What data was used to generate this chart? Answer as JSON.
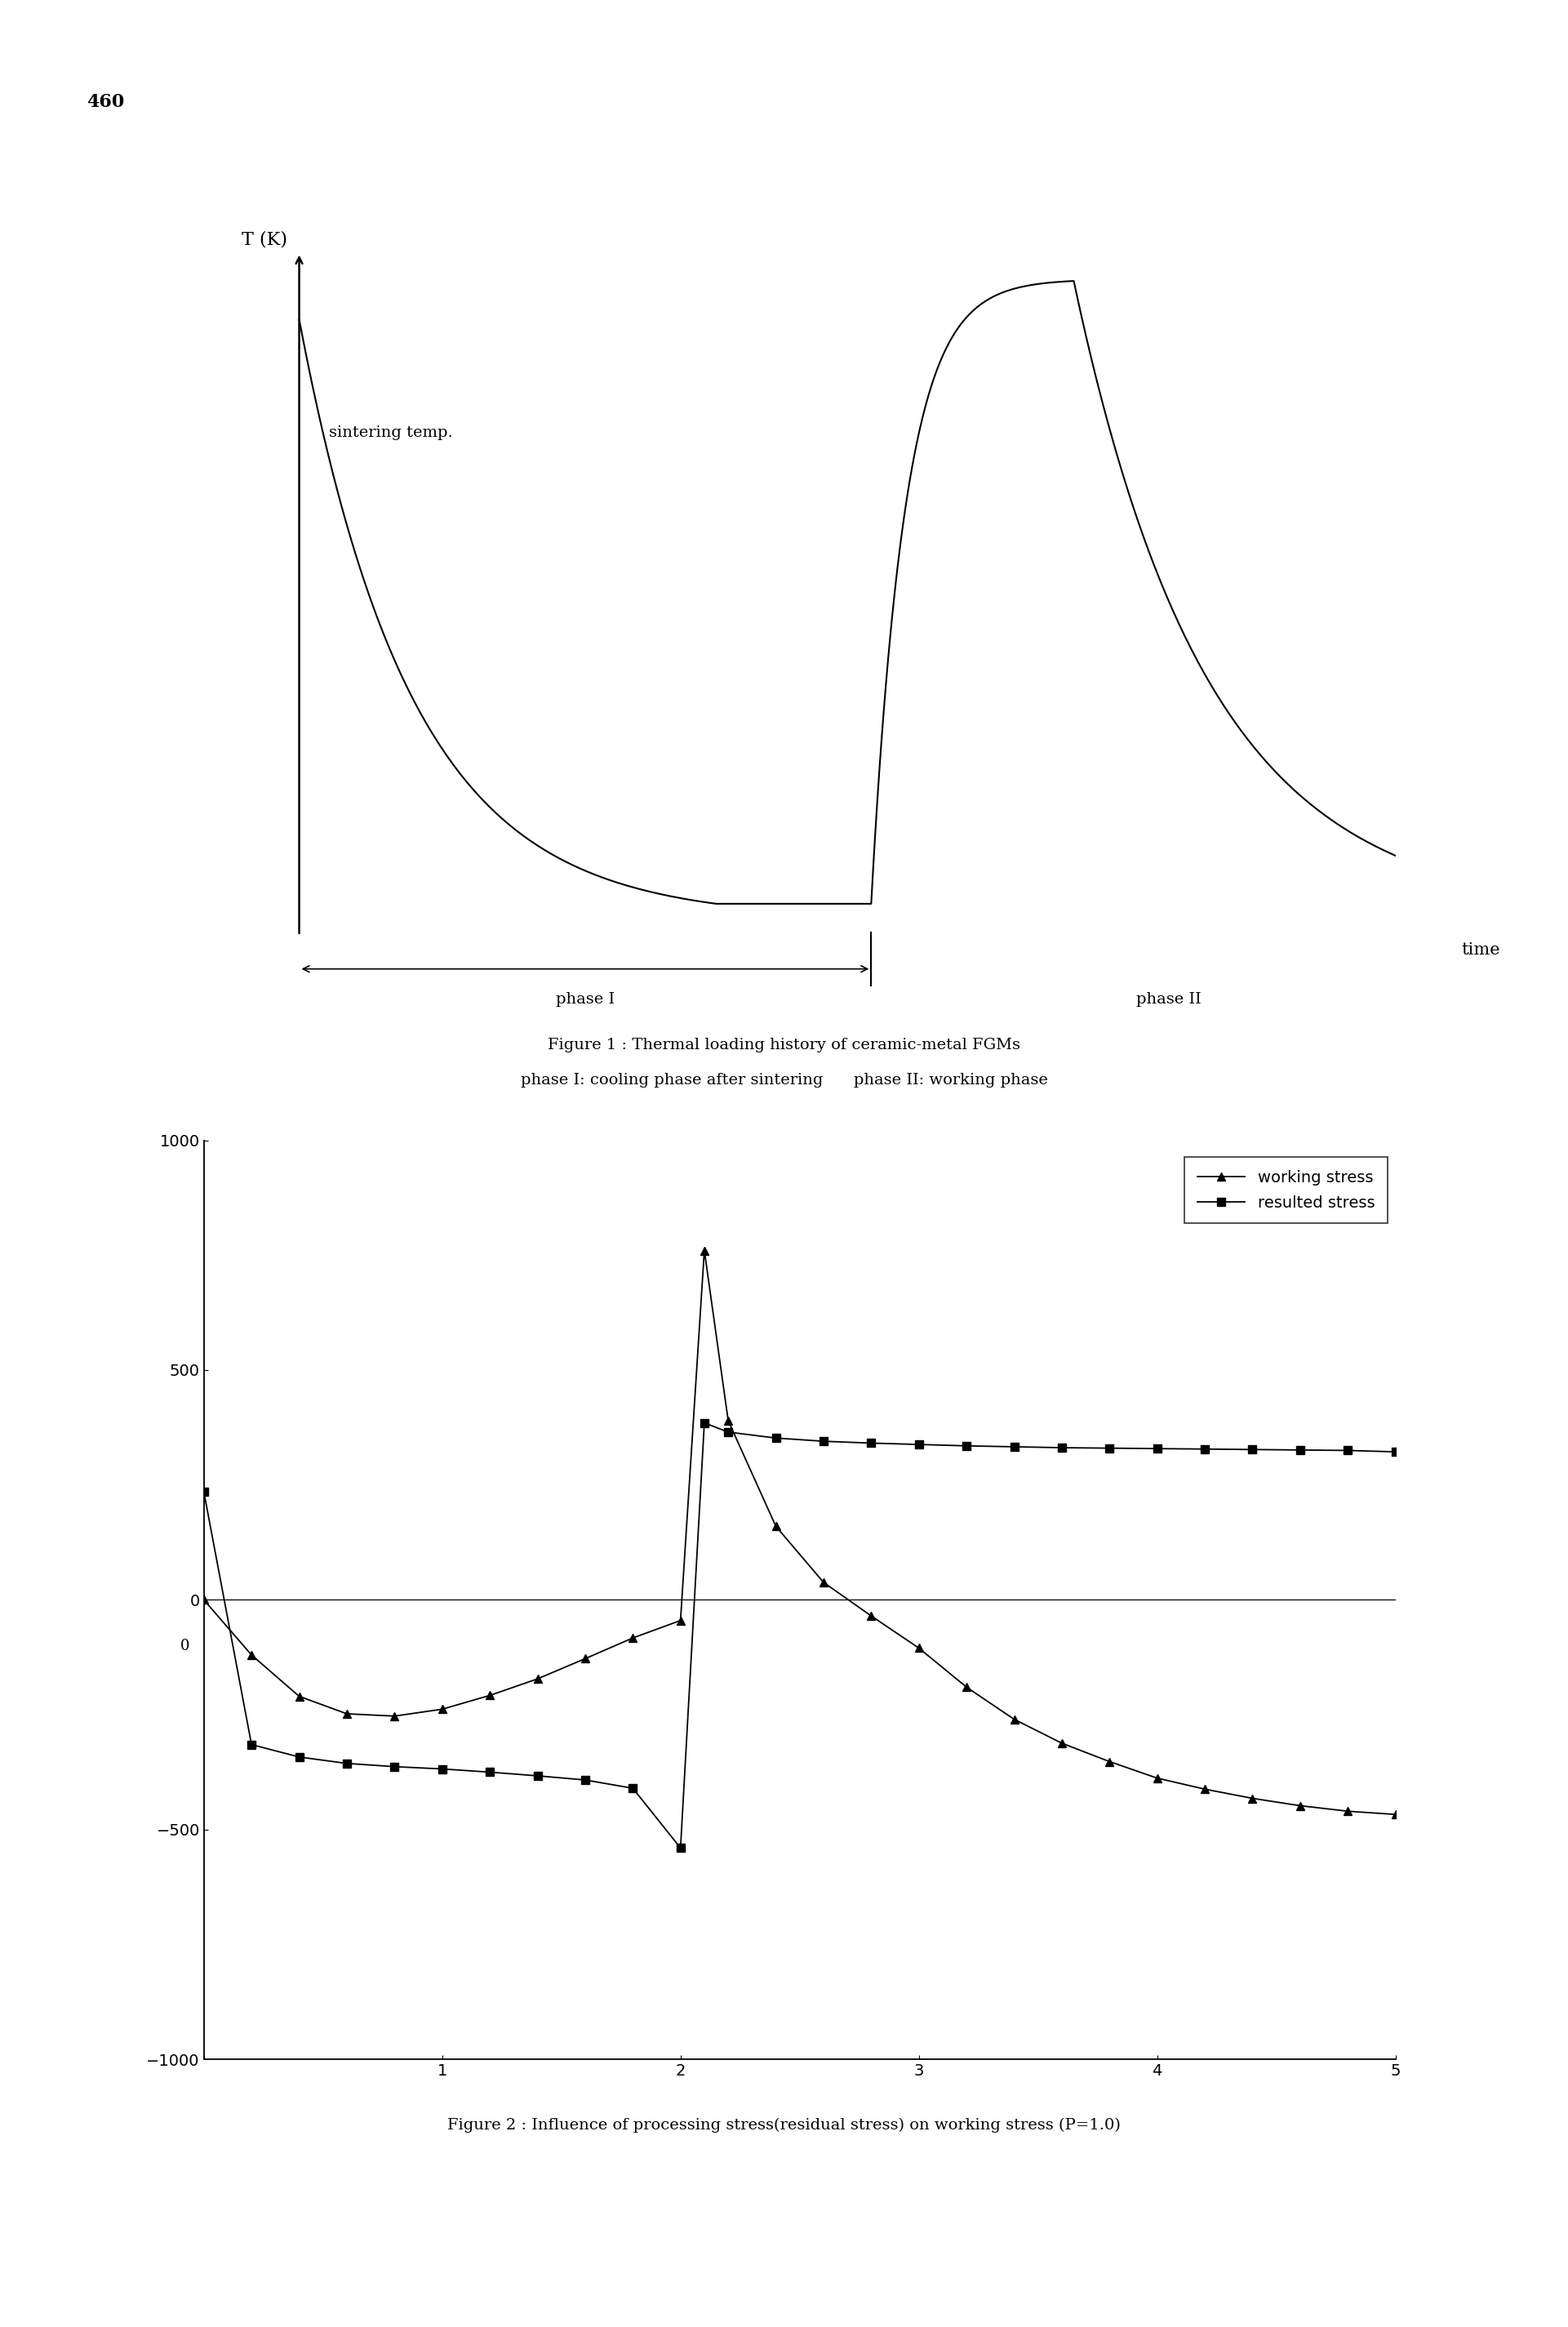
{
  "page_number": "460",
  "fig1_title_line1": "Figure 1 : Thermal loading history of ceramic-metal FGMs",
  "fig1_title_line2": "phase I: cooling phase after sintering      phase II: working phase",
  "fig1_ylabel": "T (K)",
  "fig1_xlabel_text": "time",
  "fig1_sintering_label": "sintering temp.",
  "fig1_phase1_label": "phase I",
  "fig1_phase2_label": "phase II",
  "fig2_caption": "Figure 2 : Influence of processing stress(residual stress) on working stress (P=1.0)",
  "fig2_ylim": [
    -1000,
    1000
  ],
  "fig2_xlim": [
    0,
    5
  ],
  "fig2_yticks": [
    -1000,
    -500,
    0,
    500,
    1000
  ],
  "fig2_xtick_vals": [
    0,
    1,
    2,
    3,
    4,
    5
  ],
  "working_stress_x": [
    0.0,
    0.2,
    0.4,
    0.6,
    0.8,
    1.0,
    1.2,
    1.4,
    1.6,
    1.8,
    2.0,
    2.1,
    2.2,
    2.4,
    2.6,
    2.8,
    3.0,
    3.2,
    3.4,
    3.6,
    3.8,
    4.0,
    4.2,
    4.4,
    4.6,
    4.8,
    5.0
  ],
  "working_stress_y": [
    0,
    -120,
    -210,
    -248,
    -253,
    -238,
    -208,
    -172,
    -128,
    -83,
    -45,
    760,
    390,
    160,
    38,
    -35,
    -105,
    -190,
    -260,
    -312,
    -352,
    -388,
    -412,
    -432,
    -448,
    -460,
    -467
  ],
  "resulted_stress_x": [
    0.0,
    0.2,
    0.4,
    0.6,
    0.8,
    1.0,
    1.2,
    1.4,
    1.6,
    1.8,
    2.0,
    2.1,
    2.2,
    2.4,
    2.6,
    2.8,
    3.0,
    3.2,
    3.4,
    3.6,
    3.8,
    4.0,
    4.2,
    4.4,
    4.6,
    4.8,
    5.0
  ],
  "resulted_stress_y": [
    235,
    -315,
    -342,
    -356,
    -363,
    -368,
    -375,
    -383,
    -392,
    -410,
    -540,
    385,
    365,
    352,
    345,
    341,
    338,
    335,
    333,
    331,
    330,
    329,
    328,
    327,
    326,
    325,
    322
  ],
  "legend_working": "working stress",
  "legend_resulted": "resulted stress",
  "background_color": "#ffffff",
  "line_color": "#000000"
}
